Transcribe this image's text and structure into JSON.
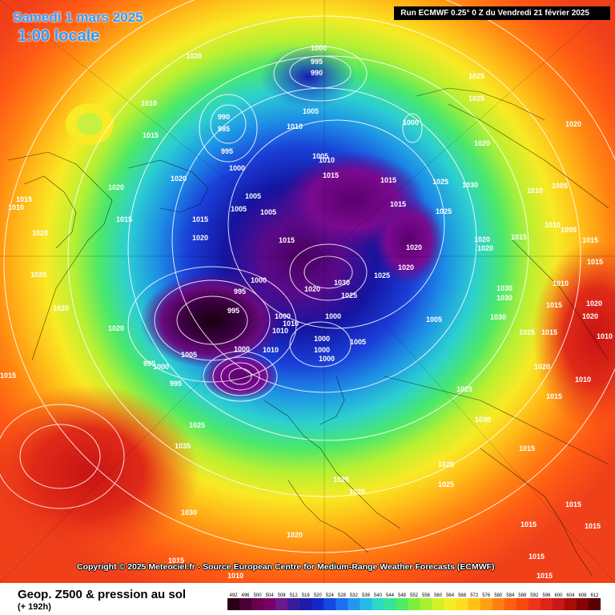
{
  "header": {
    "date_title": "Samedi 1 mars 2025",
    "time_title": "1:00 locale",
    "run_info": "Run ECMWF 0.25° 0 Z du Vendredi 21 février 2025"
  },
  "copyright": "Copyright © 2025 Meteociel.fr - Source European Centre for Medium-Range Weather Forecasts (ECMWF)",
  "footer": {
    "field_title": "Geop. Z500 & pression au sol",
    "forecast_hour": "(+ 192h)"
  },
  "legend": {
    "values": [
      "492",
      "496",
      "500",
      "504",
      "508",
      "512",
      "516",
      "520",
      "524",
      "528",
      "532",
      "536",
      "540",
      "544",
      "548",
      "552",
      "556",
      "560",
      "564",
      "568",
      "572",
      "576",
      "580",
      "584",
      "588",
      "592",
      "596",
      "600",
      "604",
      "608",
      "612"
    ],
    "colors": [
      "#2a0018",
      "#4a0035",
      "#6a004e",
      "#7a0068",
      "#6a1a8a",
      "#3a1c9a",
      "#1c1ca8",
      "#1428c8",
      "#1448e0",
      "#1c70ee",
      "#2496ee",
      "#28b8e8",
      "#2cd8c8",
      "#34e49a",
      "#50ea64",
      "#7cee3c",
      "#a8f030",
      "#d4f028",
      "#f4ee24",
      "#ffdc20",
      "#ffc018",
      "#ffa014",
      "#ff8010",
      "#ff6010",
      "#f84810",
      "#ec3418",
      "#dc2418",
      "#c81818",
      "#aa0c0c",
      "#860404",
      "#5a0000"
    ]
  },
  "map": {
    "pressure_labels": [
      "1000",
      "995",
      "990",
      "985",
      "1005",
      "1010",
      "1015",
      "1020",
      "1025",
      "1030",
      "1035"
    ]
  }
}
